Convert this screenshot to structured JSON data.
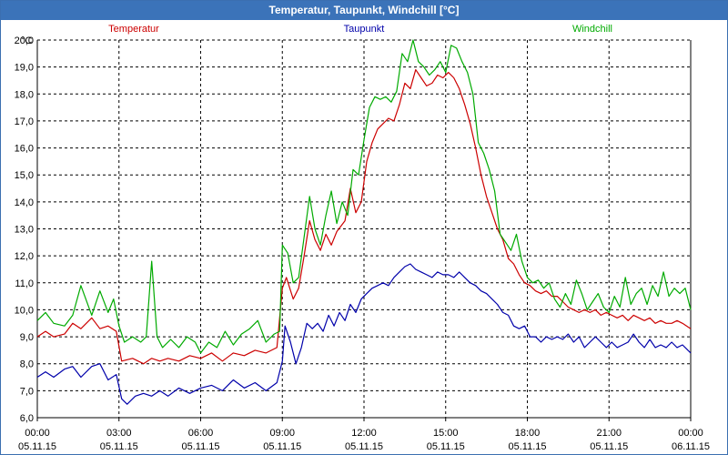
{
  "window": {
    "title": "Temperatur, Taupunkt, Windchill [°C]"
  },
  "chart_data": {
    "type": "line",
    "title": "Temperatur, Taupunkt, Windchill [°C]",
    "ylabel": "°C",
    "ylim": [
      6.0,
      20.0
    ],
    "yticks": [
      "6,0",
      "7,0",
      "8,0",
      "9,0",
      "10,0",
      "11,0",
      "12,0",
      "13,0",
      "14,0",
      "15,0",
      "16,0",
      "17,0",
      "18,0",
      "19,0",
      "20,0"
    ],
    "xlim": [
      0,
      24
    ],
    "xticks": [
      {
        "time": "00:00",
        "date": "05.11.15"
      },
      {
        "time": "03:00",
        "date": "05.11.15"
      },
      {
        "time": "06:00",
        "date": "05.11.15"
      },
      {
        "time": "09:00",
        "date": "05.11.15"
      },
      {
        "time": "12:00",
        "date": "05.11.15"
      },
      {
        "time": "15:00",
        "date": "05.11.15"
      },
      {
        "time": "18:00",
        "date": "05.11.15"
      },
      {
        "time": "21:00",
        "date": "05.11.15"
      },
      {
        "time": "00:00",
        "date": "06.11.15"
      }
    ],
    "grid": true,
    "series": [
      {
        "name": "Temperatur",
        "color": "#cc0000",
        "points": [
          [
            0,
            9.0
          ],
          [
            0.3,
            9.2
          ],
          [
            0.6,
            9.0
          ],
          [
            1,
            9.1
          ],
          [
            1.3,
            9.5
          ],
          [
            1.6,
            9.3
          ],
          [
            2,
            9.7
          ],
          [
            2.3,
            9.3
          ],
          [
            2.6,
            9.4
          ],
          [
            2.9,
            9.2
          ],
          [
            3.1,
            8.1
          ],
          [
            3.5,
            8.2
          ],
          [
            3.9,
            8.0
          ],
          [
            4.2,
            8.2
          ],
          [
            4.5,
            8.1
          ],
          [
            4.8,
            8.2
          ],
          [
            5.2,
            8.1
          ],
          [
            5.6,
            8.3
          ],
          [
            6,
            8.2
          ],
          [
            6.4,
            8.4
          ],
          [
            6.8,
            8.1
          ],
          [
            7.2,
            8.4
          ],
          [
            7.6,
            8.3
          ],
          [
            8,
            8.5
          ],
          [
            8.4,
            8.4
          ],
          [
            8.8,
            8.6
          ],
          [
            9.0,
            10.8
          ],
          [
            9.15,
            11.2
          ],
          [
            9.4,
            10.4
          ],
          [
            9.6,
            10.8
          ],
          [
            9.8,
            12.0
          ],
          [
            10.0,
            13.3
          ],
          [
            10.2,
            12.6
          ],
          [
            10.4,
            12.2
          ],
          [
            10.6,
            12.8
          ],
          [
            10.8,
            12.4
          ],
          [
            11.0,
            12.9
          ],
          [
            11.3,
            13.3
          ],
          [
            11.5,
            14.5
          ],
          [
            11.7,
            13.6
          ],
          [
            11.9,
            14.0
          ],
          [
            12.1,
            15.5
          ],
          [
            12.3,
            16.2
          ],
          [
            12.5,
            16.7
          ],
          [
            12.7,
            16.9
          ],
          [
            12.9,
            17.1
          ],
          [
            13.1,
            17.0
          ],
          [
            13.3,
            17.6
          ],
          [
            13.5,
            18.4
          ],
          [
            13.7,
            18.2
          ],
          [
            13.9,
            18.9
          ],
          [
            14.1,
            18.6
          ],
          [
            14.3,
            18.3
          ],
          [
            14.5,
            18.4
          ],
          [
            14.7,
            18.7
          ],
          [
            14.9,
            18.6
          ],
          [
            15.1,
            18.8
          ],
          [
            15.3,
            18.6
          ],
          [
            15.5,
            18.2
          ],
          [
            15.7,
            17.6
          ],
          [
            15.9,
            16.9
          ],
          [
            16.1,
            16.0
          ],
          [
            16.3,
            15.0
          ],
          [
            16.5,
            14.2
          ],
          [
            16.7,
            13.6
          ],
          [
            16.9,
            13.0
          ],
          [
            17.1,
            12.6
          ],
          [
            17.3,
            11.9
          ],
          [
            17.5,
            11.7
          ],
          [
            17.7,
            11.3
          ],
          [
            17.9,
            11.0
          ],
          [
            18.1,
            10.9
          ],
          [
            18.3,
            10.7
          ],
          [
            18.5,
            10.6
          ],
          [
            18.7,
            10.7
          ],
          [
            18.9,
            10.5
          ],
          [
            19.1,
            10.5
          ],
          [
            19.3,
            10.3
          ],
          [
            19.5,
            10.1
          ],
          [
            19.7,
            10.0
          ],
          [
            19.9,
            9.9
          ],
          [
            20.1,
            10.0
          ],
          [
            20.3,
            9.9
          ],
          [
            20.5,
            10.0
          ],
          [
            20.7,
            9.8
          ],
          [
            20.9,
            9.9
          ],
          [
            21.1,
            9.8
          ],
          [
            21.3,
            9.7
          ],
          [
            21.5,
            9.8
          ],
          [
            21.7,
            9.6
          ],
          [
            21.9,
            9.8
          ],
          [
            22.1,
            9.7
          ],
          [
            22.3,
            9.6
          ],
          [
            22.5,
            9.7
          ],
          [
            22.7,
            9.5
          ],
          [
            22.9,
            9.6
          ],
          [
            23.1,
            9.5
          ],
          [
            23.3,
            9.5
          ],
          [
            23.5,
            9.6
          ],
          [
            23.7,
            9.5
          ],
          [
            24,
            9.3
          ]
        ]
      },
      {
        "name": "Taupunkt",
        "color": "#0000aa",
        "points": [
          [
            0,
            7.5
          ],
          [
            0.3,
            7.7
          ],
          [
            0.6,
            7.5
          ],
          [
            1,
            7.8
          ],
          [
            1.3,
            7.9
          ],
          [
            1.6,
            7.5
          ],
          [
            2,
            7.9
          ],
          [
            2.3,
            8.0
          ],
          [
            2.6,
            7.4
          ],
          [
            2.9,
            7.6
          ],
          [
            3.1,
            6.7
          ],
          [
            3.3,
            6.5
          ],
          [
            3.6,
            6.8
          ],
          [
            3.9,
            6.9
          ],
          [
            4.2,
            6.8
          ],
          [
            4.5,
            7.0
          ],
          [
            4.8,
            6.8
          ],
          [
            5.2,
            7.1
          ],
          [
            5.6,
            6.9
          ],
          [
            6,
            7.1
          ],
          [
            6.4,
            7.2
          ],
          [
            6.8,
            7.0
          ],
          [
            7.2,
            7.4
          ],
          [
            7.6,
            7.1
          ],
          [
            8,
            7.3
          ],
          [
            8.4,
            7.0
          ],
          [
            8.8,
            7.3
          ],
          [
            9.0,
            8.1
          ],
          [
            9.1,
            9.4
          ],
          [
            9.3,
            8.8
          ],
          [
            9.5,
            8.0
          ],
          [
            9.7,
            8.6
          ],
          [
            9.9,
            9.5
          ],
          [
            10.1,
            9.3
          ],
          [
            10.3,
            9.5
          ],
          [
            10.5,
            9.2
          ],
          [
            10.7,
            9.8
          ],
          [
            10.9,
            9.4
          ],
          [
            11.1,
            9.9
          ],
          [
            11.3,
            9.6
          ],
          [
            11.5,
            10.2
          ],
          [
            11.7,
            9.9
          ],
          [
            11.9,
            10.4
          ],
          [
            12.1,
            10.6
          ],
          [
            12.3,
            10.8
          ],
          [
            12.5,
            10.9
          ],
          [
            12.7,
            11.0
          ],
          [
            12.9,
            10.9
          ],
          [
            13.1,
            11.2
          ],
          [
            13.3,
            11.4
          ],
          [
            13.5,
            11.6
          ],
          [
            13.7,
            11.7
          ],
          [
            13.9,
            11.5
          ],
          [
            14.1,
            11.4
          ],
          [
            14.3,
            11.3
          ],
          [
            14.5,
            11.2
          ],
          [
            14.7,
            11.4
          ],
          [
            14.9,
            11.3
          ],
          [
            15.1,
            11.3
          ],
          [
            15.3,
            11.2
          ],
          [
            15.5,
            11.4
          ],
          [
            15.7,
            11.2
          ],
          [
            15.9,
            11.0
          ],
          [
            16.1,
            10.9
          ],
          [
            16.3,
            10.7
          ],
          [
            16.5,
            10.6
          ],
          [
            16.7,
            10.4
          ],
          [
            16.9,
            10.2
          ],
          [
            17.1,
            9.9
          ],
          [
            17.3,
            9.8
          ],
          [
            17.5,
            9.4
          ],
          [
            17.7,
            9.3
          ],
          [
            17.9,
            9.4
          ],
          [
            18.1,
            9.0
          ],
          [
            18.3,
            9.0
          ],
          [
            18.5,
            8.8
          ],
          [
            18.7,
            9.0
          ],
          [
            18.9,
            8.9
          ],
          [
            19.1,
            9.0
          ],
          [
            19.3,
            8.9
          ],
          [
            19.5,
            9.1
          ],
          [
            19.7,
            8.8
          ],
          [
            19.9,
            9.0
          ],
          [
            20.1,
            8.6
          ],
          [
            20.3,
            8.8
          ],
          [
            20.5,
            9.0
          ],
          [
            20.7,
            8.8
          ],
          [
            20.9,
            8.6
          ],
          [
            21.1,
            8.8
          ],
          [
            21.3,
            8.6
          ],
          [
            21.5,
            8.7
          ],
          [
            21.7,
            8.8
          ],
          [
            21.9,
            9.1
          ],
          [
            22.1,
            8.8
          ],
          [
            22.3,
            8.6
          ],
          [
            22.5,
            8.9
          ],
          [
            22.7,
            8.6
          ],
          [
            22.9,
            8.7
          ],
          [
            23.1,
            8.6
          ],
          [
            23.3,
            8.8
          ],
          [
            23.5,
            8.6
          ],
          [
            23.7,
            8.7
          ],
          [
            24,
            8.4
          ]
        ]
      },
      {
        "name": "Windchill",
        "color": "#00aa00",
        "points": [
          [
            0,
            9.6
          ],
          [
            0.3,
            9.9
          ],
          [
            0.6,
            9.5
          ],
          [
            1,
            9.4
          ],
          [
            1.3,
            9.8
          ],
          [
            1.6,
            10.9
          ],
          [
            2,
            9.8
          ],
          [
            2.3,
            10.7
          ],
          [
            2.6,
            9.9
          ],
          [
            2.8,
            10.4
          ],
          [
            3.0,
            9.4
          ],
          [
            3.2,
            8.8
          ],
          [
            3.5,
            9.0
          ],
          [
            3.8,
            8.8
          ],
          [
            4.0,
            9.0
          ],
          [
            4.2,
            11.8
          ],
          [
            4.4,
            9.0
          ],
          [
            4.6,
            8.6
          ],
          [
            4.9,
            8.9
          ],
          [
            5.2,
            8.6
          ],
          [
            5.5,
            9.0
          ],
          [
            5.8,
            8.8
          ],
          [
            6.0,
            8.4
          ],
          [
            6.3,
            8.8
          ],
          [
            6.6,
            8.6
          ],
          [
            6.9,
            9.2
          ],
          [
            7.2,
            8.7
          ],
          [
            7.5,
            9.1
          ],
          [
            7.8,
            9.3
          ],
          [
            8.1,
            9.6
          ],
          [
            8.4,
            8.8
          ],
          [
            8.7,
            9.1
          ],
          [
            8.9,
            9.2
          ],
          [
            9.0,
            12.4
          ],
          [
            9.2,
            12.1
          ],
          [
            9.4,
            11.0
          ],
          [
            9.6,
            11.2
          ],
          [
            9.8,
            12.7
          ],
          [
            10.0,
            14.2
          ],
          [
            10.2,
            13.0
          ],
          [
            10.4,
            12.4
          ],
          [
            10.6,
            13.5
          ],
          [
            10.8,
            14.4
          ],
          [
            11.0,
            13.2
          ],
          [
            11.2,
            14.0
          ],
          [
            11.4,
            13.5
          ],
          [
            11.6,
            15.2
          ],
          [
            11.8,
            15.0
          ],
          [
            12.0,
            16.3
          ],
          [
            12.2,
            17.5
          ],
          [
            12.4,
            17.9
          ],
          [
            12.6,
            17.8
          ],
          [
            12.8,
            17.9
          ],
          [
            13.0,
            17.7
          ],
          [
            13.2,
            18.1
          ],
          [
            13.4,
            19.5
          ],
          [
            13.6,
            19.2
          ],
          [
            13.8,
            20.0
          ],
          [
            14.0,
            19.2
          ],
          [
            14.2,
            19.0
          ],
          [
            14.4,
            18.7
          ],
          [
            14.6,
            18.9
          ],
          [
            14.8,
            19.2
          ],
          [
            15.0,
            18.8
          ],
          [
            15.2,
            19.8
          ],
          [
            15.4,
            19.7
          ],
          [
            15.6,
            19.2
          ],
          [
            15.8,
            18.8
          ],
          [
            16.0,
            18.0
          ],
          [
            16.2,
            16.2
          ],
          [
            16.4,
            15.8
          ],
          [
            16.6,
            15.2
          ],
          [
            16.8,
            14.4
          ],
          [
            17.0,
            12.8
          ],
          [
            17.2,
            12.5
          ],
          [
            17.4,
            12.2
          ],
          [
            17.6,
            12.8
          ],
          [
            17.8,
            11.8
          ],
          [
            18.0,
            11.2
          ],
          [
            18.2,
            11.0
          ],
          [
            18.4,
            11.1
          ],
          [
            18.6,
            10.8
          ],
          [
            18.8,
            11.0
          ],
          [
            19.0,
            10.4
          ],
          [
            19.2,
            10.1
          ],
          [
            19.4,
            10.6
          ],
          [
            19.6,
            10.2
          ],
          [
            19.8,
            11.1
          ],
          [
            20.0,
            10.6
          ],
          [
            20.2,
            10.0
          ],
          [
            20.4,
            10.3
          ],
          [
            20.6,
            10.6
          ],
          [
            20.8,
            10.1
          ],
          [
            21.0,
            9.9
          ],
          [
            21.2,
            10.5
          ],
          [
            21.4,
            10.1
          ],
          [
            21.6,
            11.2
          ],
          [
            21.8,
            10.2
          ],
          [
            22.0,
            10.6
          ],
          [
            22.2,
            10.8
          ],
          [
            22.4,
            10.2
          ],
          [
            22.6,
            10.9
          ],
          [
            22.8,
            10.5
          ],
          [
            23.0,
            11.4
          ],
          [
            23.2,
            10.5
          ],
          [
            23.4,
            10.8
          ],
          [
            23.6,
            10.6
          ],
          [
            23.8,
            10.8
          ],
          [
            24,
            10.0
          ]
        ]
      }
    ]
  }
}
